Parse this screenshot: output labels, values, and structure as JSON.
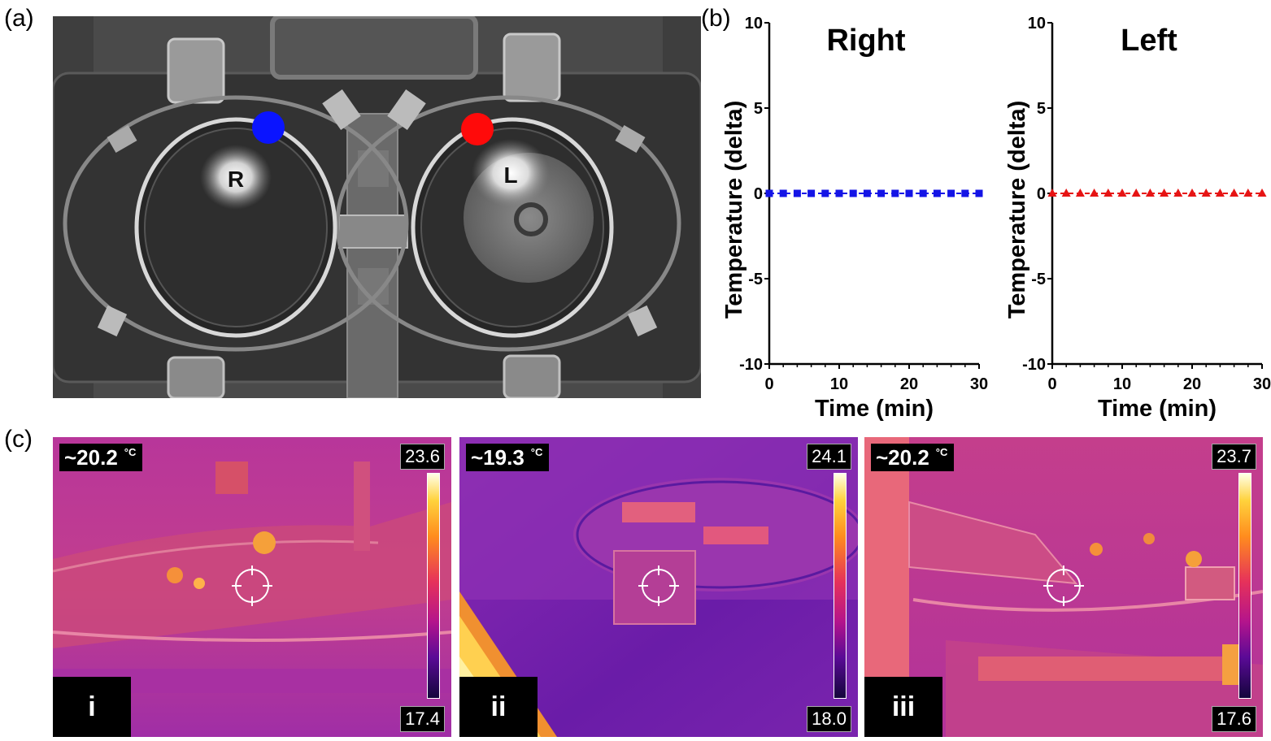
{
  "panel_labels": {
    "a": "(a)",
    "b": "(b)",
    "c": "(c)"
  },
  "xray": {
    "marker_right_label": "R",
    "marker_left_label": "L",
    "marker_right_color": "#0a14ff",
    "marker_left_color": "#ff0a0a"
  },
  "chart_data": [
    {
      "type": "line",
      "title": "Right",
      "xlabel": "Time (min)",
      "ylabel": "Temperature (delta)",
      "xlim": [
        0,
        30
      ],
      "ylim": [
        -10,
        10
      ],
      "xticks": [
        "0",
        "10",
        "20",
        "30"
      ],
      "yticks": [
        "10",
        "5",
        "0",
        "-5",
        "-10"
      ],
      "grid": false,
      "marker": "square",
      "color": "#1414e6",
      "x": [
        0,
        2,
        4,
        6,
        8,
        10,
        12,
        14,
        16,
        18,
        20,
        22,
        24,
        26,
        28,
        30
      ],
      "y": [
        0,
        0,
        0,
        0,
        0,
        0,
        0,
        0,
        0,
        0,
        0,
        0,
        0,
        0,
        0,
        0
      ]
    },
    {
      "type": "line",
      "title": "Left",
      "xlabel": "Time (min)",
      "ylabel": "Temperature (delta)",
      "xlim": [
        0,
        30
      ],
      "ylim": [
        -10,
        10
      ],
      "xticks": [
        "0",
        "10",
        "20",
        "30"
      ],
      "yticks": [
        "10",
        "5",
        "0",
        "-5",
        "-10"
      ],
      "grid": false,
      "marker": "triangle",
      "color": "#e61414",
      "x": [
        0,
        2,
        4,
        6,
        8,
        10,
        12,
        14,
        16,
        18,
        20,
        22,
        24,
        26,
        28,
        30
      ],
      "y": [
        0,
        0,
        0,
        0,
        0,
        0,
        0,
        0,
        0,
        0,
        0,
        0,
        0,
        0,
        0,
        0
      ]
    }
  ],
  "thermal_images": [
    {
      "tag": "i",
      "reading": "~20.2",
      "unit": "°C",
      "scale_max": "23.6",
      "scale_min": "17.4"
    },
    {
      "tag": "ii",
      "reading": "~19.3",
      "unit": "°C",
      "scale_max": "24.1",
      "scale_min": "18.0"
    },
    {
      "tag": "iii",
      "reading": "~20.2",
      "unit": "°C",
      "scale_max": "23.7",
      "scale_min": "17.6"
    }
  ]
}
